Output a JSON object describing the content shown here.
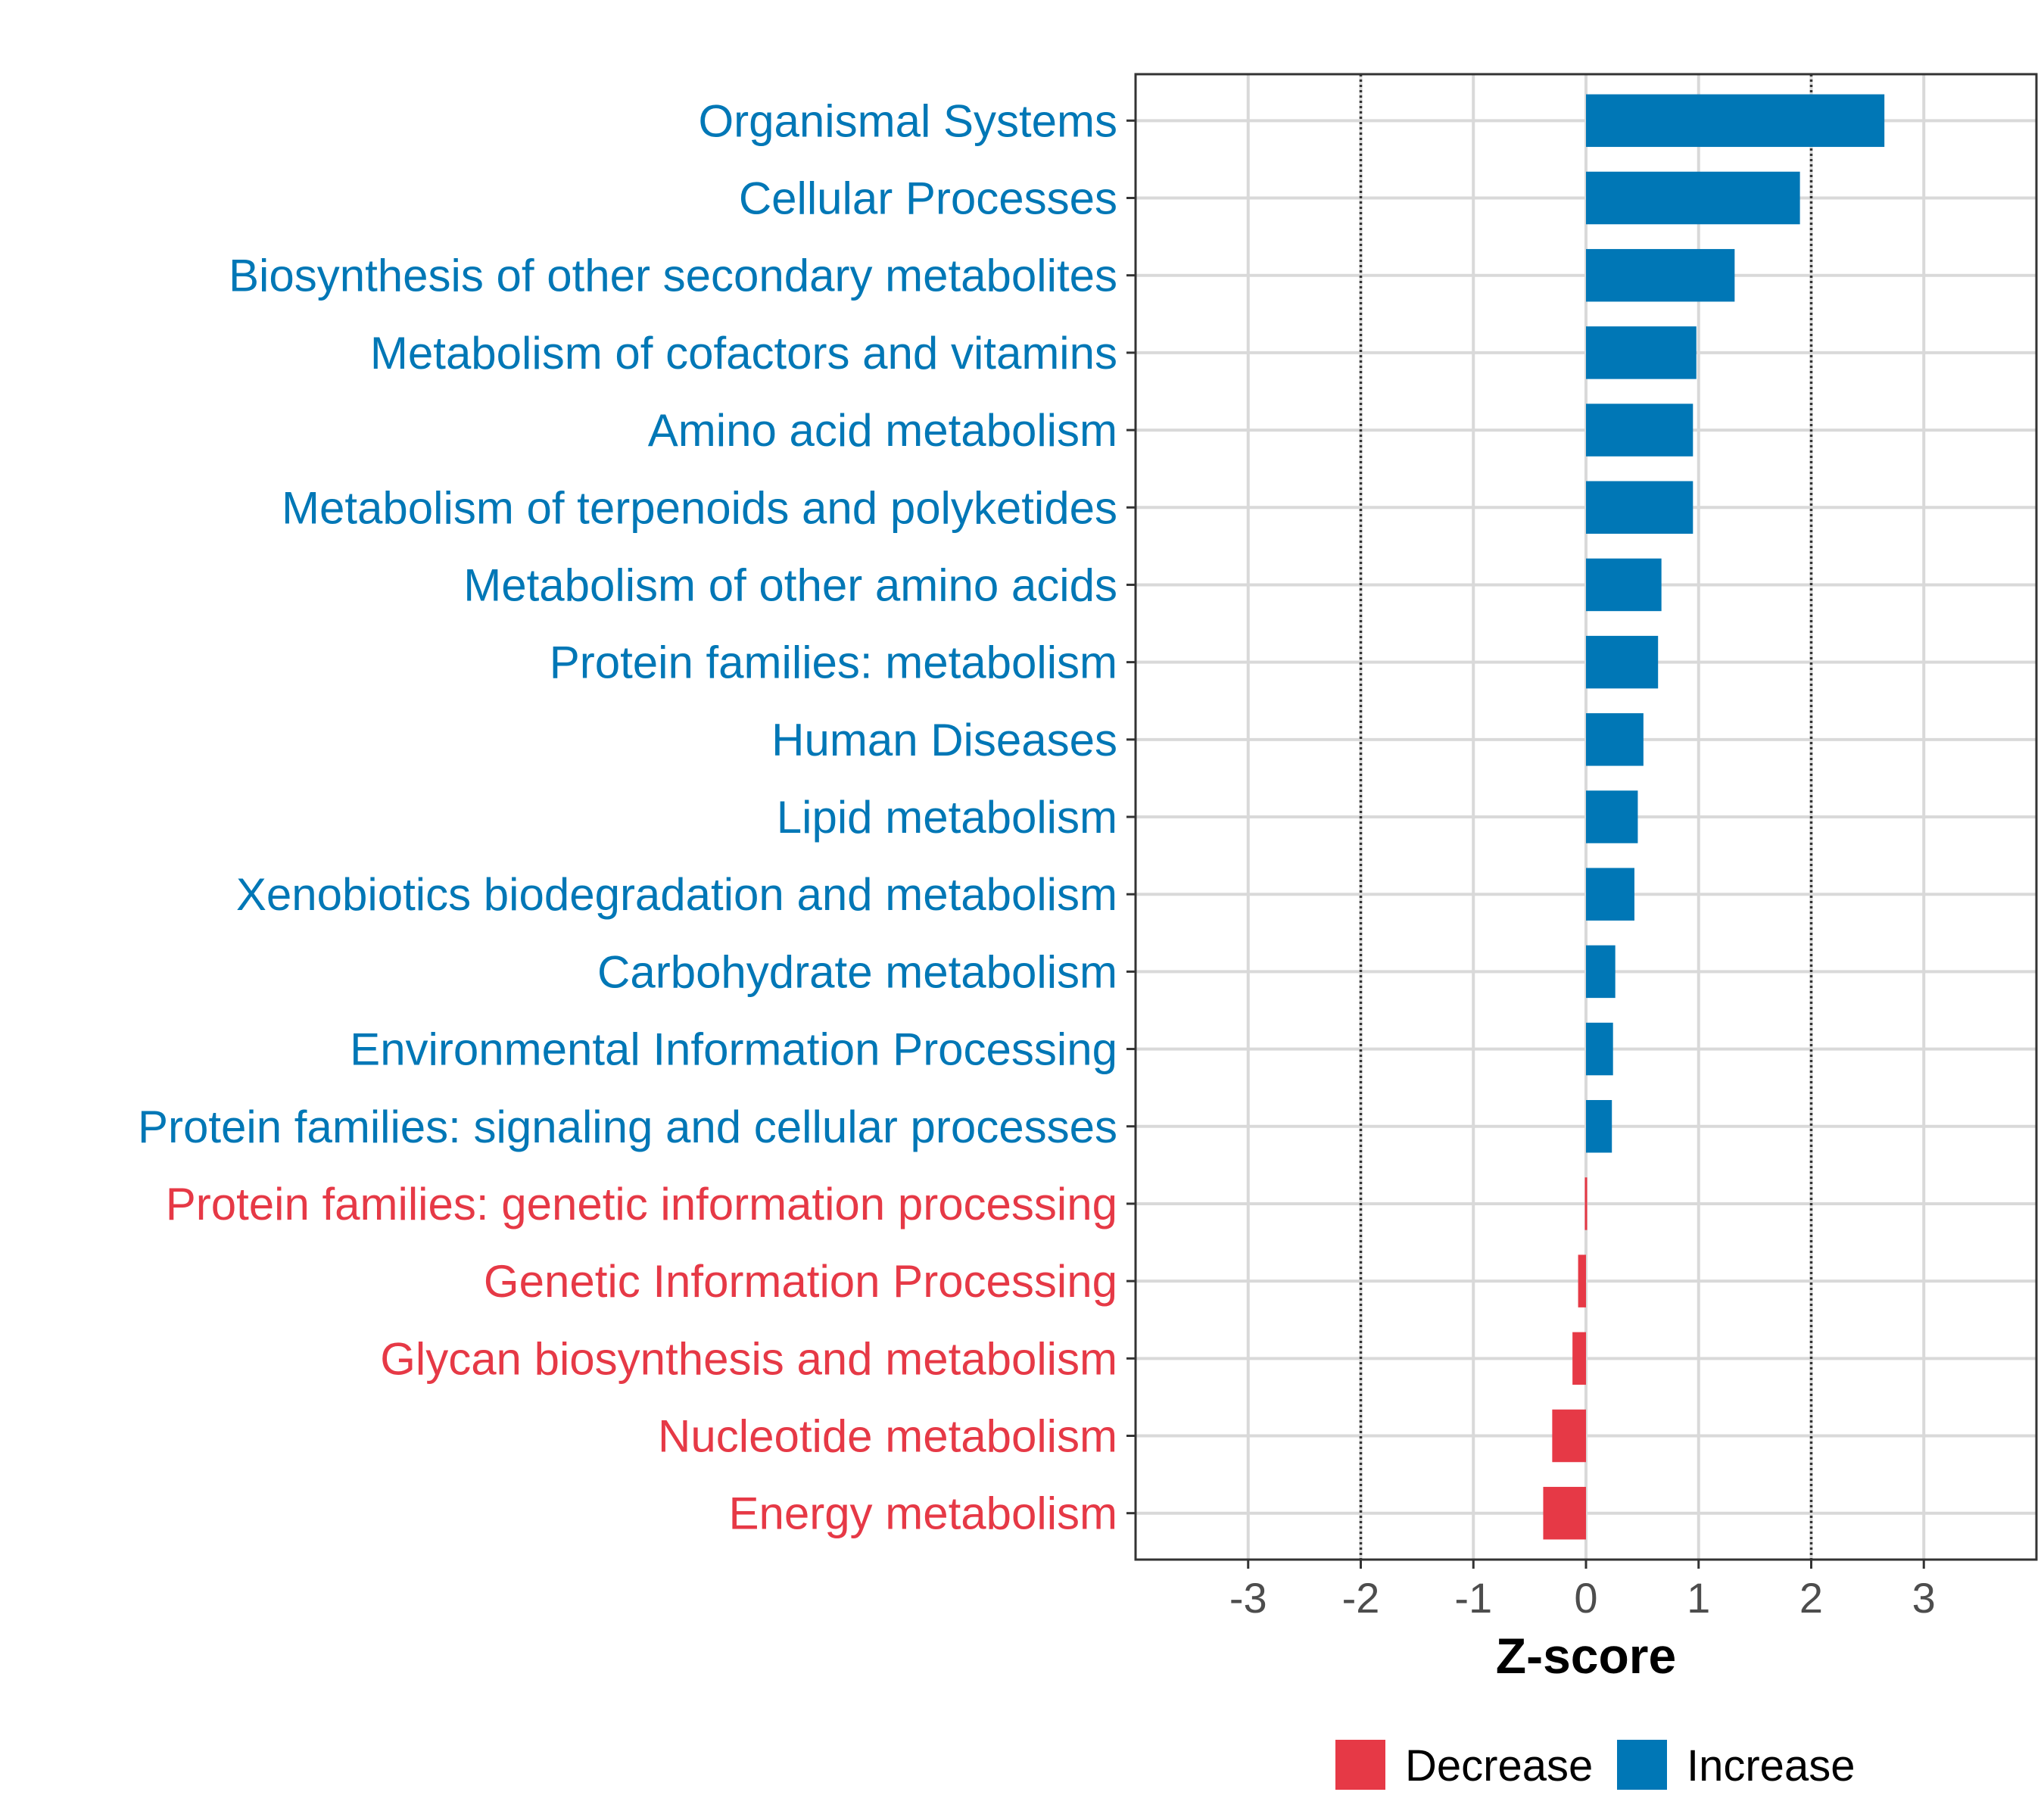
{
  "chart_data": {
    "type": "bar",
    "orientation": "horizontal",
    "categories": [
      "Organismal Systems",
      "Cellular Processes",
      "Biosynthesis of other secondary metabolites",
      "Metabolism of cofactors and vitamins",
      "Amino acid metabolism",
      "Metabolism of terpenoids and polyketides",
      "Metabolism of other amino acids",
      "Protein families: metabolism",
      "Human Diseases",
      "Lipid metabolism",
      "Xenobiotics biodegradation and metabolism",
      "Carbohydrate metabolism",
      "Environmental Information Processing",
      "Protein families: signaling and cellular processes",
      "Protein families: genetic information processing",
      "Genetic Information Processing",
      "Glycan biosynthesis and metabolism",
      "Nucleotide metabolism",
      "Energy metabolism"
    ],
    "values": [
      2.65,
      1.9,
      1.32,
      0.98,
      0.95,
      0.95,
      0.67,
      0.64,
      0.51,
      0.46,
      0.43,
      0.26,
      0.24,
      0.23,
      -0.01,
      -0.07,
      -0.12,
      -0.3,
      -0.38
    ],
    "groups": [
      "Increase",
      "Increase",
      "Increase",
      "Increase",
      "Increase",
      "Increase",
      "Increase",
      "Increase",
      "Increase",
      "Increase",
      "Increase",
      "Increase",
      "Increase",
      "Increase",
      "Decrease",
      "Decrease",
      "Decrease",
      "Decrease",
      "Decrease"
    ],
    "xlabel": "Z-score",
    "ylabel": "",
    "xlim": [
      -4,
      4
    ],
    "xticks": [
      -3,
      -2,
      -1,
      0,
      1,
      2,
      3
    ],
    "xtick_labels": [
      "-3",
      "-2",
      "-1",
      "0",
      "1",
      "2",
      "3"
    ],
    "reference_lines": [
      -2,
      2
    ],
    "grid": true,
    "legend": {
      "position": "bottom",
      "entries": [
        {
          "name": "Decrease",
          "color": "#E63946"
        },
        {
          "name": "Increase",
          "color": "#0077B6"
        }
      ]
    },
    "colors": {
      "Decrease": "#E63946",
      "Increase": "#0077B6"
    }
  }
}
